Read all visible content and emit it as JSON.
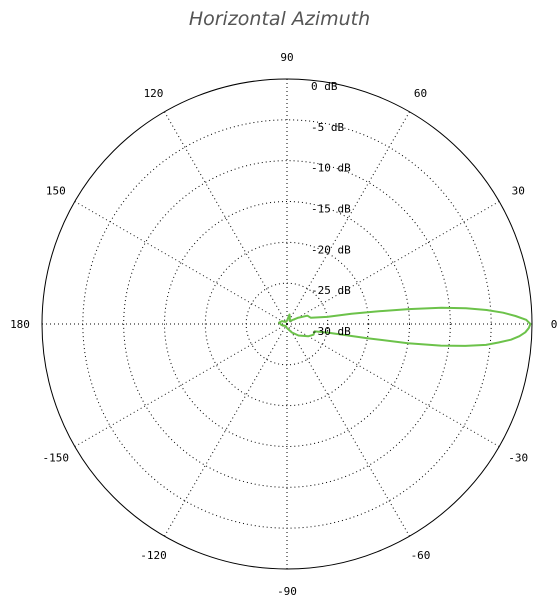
{
  "title": "Horizontal Azimuth",
  "chart_data": {
    "type": "polar-line",
    "title": "Horizontal Azimuth",
    "radial_unit": "dB",
    "radial_range": [
      -30,
      0
    ],
    "radial_ticks": [
      {
        "value": 0,
        "label": "0 dB"
      },
      {
        "value": -5,
        "label": "-5 dB"
      },
      {
        "value": -10,
        "label": "-10 dB"
      },
      {
        "value": -15,
        "label": "-15 dB"
      },
      {
        "value": -20,
        "label": "-20 dB"
      },
      {
        "value": -25,
        "label": "-25 dB"
      },
      {
        "value": -30,
        "label": "-30 dB"
      }
    ],
    "angular_ticks": [
      {
        "angle": 0,
        "label": "0"
      },
      {
        "angle": 30,
        "label": "30"
      },
      {
        "angle": 60,
        "label": "60"
      },
      {
        "angle": 90,
        "label": "90"
      },
      {
        "angle": 120,
        "label": "120"
      },
      {
        "angle": 150,
        "label": "150"
      },
      {
        "angle": 180,
        "label": "180"
      },
      {
        "angle": -150,
        "label": "-150"
      },
      {
        "angle": -120,
        "label": "-120"
      },
      {
        "angle": -90,
        "label": "-90"
      },
      {
        "angle": -60,
        "label": "-60"
      },
      {
        "angle": -30,
        "label": "-30"
      }
    ],
    "grid": true,
    "series": [
      {
        "color": "#6cc24a",
        "points": [
          {
            "angle": 0,
            "db": -0.2
          },
          {
            "angle": 1,
            "db": -0.7
          },
          {
            "angle": 2,
            "db": -2.0
          },
          {
            "angle": 3,
            "db": -3.5
          },
          {
            "angle": 4,
            "db": -5.5
          },
          {
            "angle": 5,
            "db": -8.0
          },
          {
            "angle": 6,
            "db": -11.0
          },
          {
            "angle": 7,
            "db": -15.0
          },
          {
            "angle": 8,
            "db": -19.0
          },
          {
            "angle": 9,
            "db": -22.0
          },
          {
            "angle": 10,
            "db": -25.0
          },
          {
            "angle": 15,
            "db": -27.0
          },
          {
            "angle": 22,
            "db": -27.3
          },
          {
            "angle": 30,
            "db": -28.5
          },
          {
            "angle": 45,
            "db": -29.5
          },
          {
            "angle": 60,
            "db": -29.3
          },
          {
            "angle": 75,
            "db": -28.8
          },
          {
            "angle": 90,
            "db": -29.6
          },
          {
            "angle": 120,
            "db": -29.7
          },
          {
            "angle": 150,
            "db": -29.3
          },
          {
            "angle": 170,
            "db": -29.0
          },
          {
            "angle": 180,
            "db": -29.2
          },
          {
            "angle": -170,
            "db": -29.3
          },
          {
            "angle": -150,
            "db": -29.6
          },
          {
            "angle": -120,
            "db": -29.7
          },
          {
            "angle": -90,
            "db": -29.5
          },
          {
            "angle": -60,
            "db": -28.8
          },
          {
            "angle": -45,
            "db": -28.0
          },
          {
            "angle": -30,
            "db": -27.0
          },
          {
            "angle": -22,
            "db": -26.5
          },
          {
            "angle": -15,
            "db": -26.5
          },
          {
            "angle": -12,
            "db": -25.0
          },
          {
            "angle": -10,
            "db": -20.0
          },
          {
            "angle": -9,
            "db": -15.0
          },
          {
            "angle": -8,
            "db": -11.0
          },
          {
            "angle": -7,
            "db": -8.0
          },
          {
            "angle": -6,
            "db": -5.5
          },
          {
            "angle": -5,
            "db": -4.0
          },
          {
            "angle": -4,
            "db": -2.5
          },
          {
            "angle": -3,
            "db": -1.5
          },
          {
            "angle": -2,
            "db": -0.8
          },
          {
            "angle": -1,
            "db": -0.4
          },
          {
            "angle": 0,
            "db": -0.2
          }
        ]
      }
    ]
  }
}
